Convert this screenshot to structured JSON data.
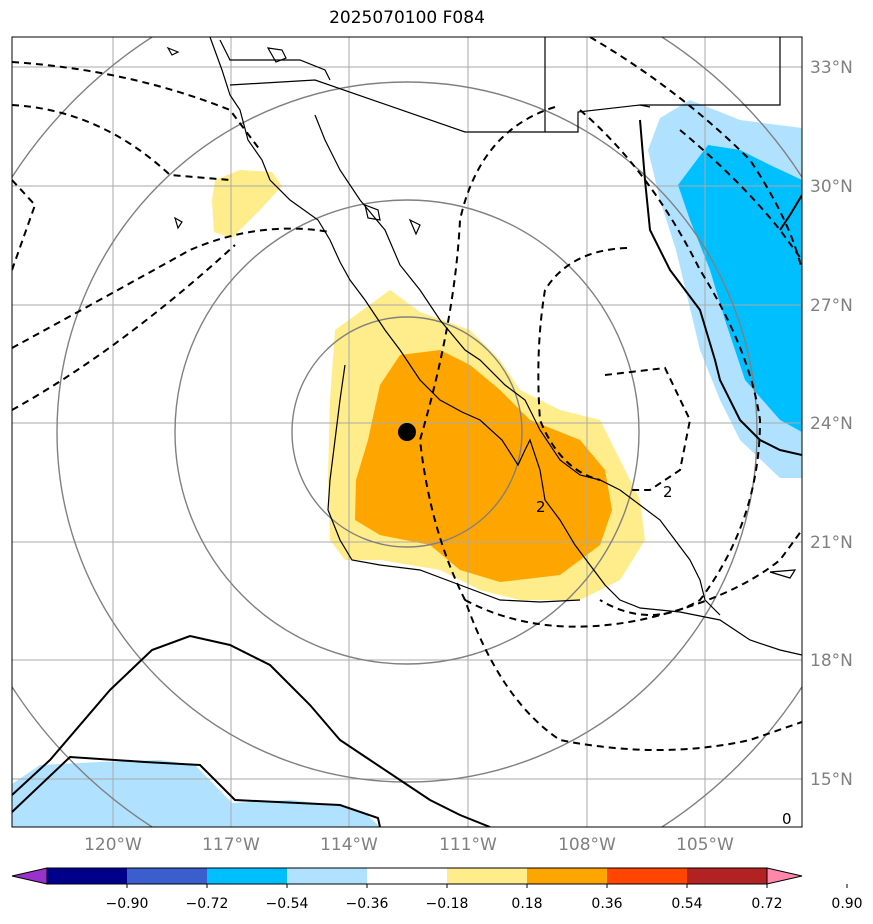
{
  "title": "2025070100 F084",
  "map": {
    "lat_labels": [
      "33°N",
      "30°N",
      "27°N",
      "24°N",
      "21°N",
      "18°N",
      "15°N"
    ],
    "lon_labels": [
      "120°W",
      "117°W",
      "114°W",
      "111°W",
      "108°W",
      "105°W"
    ],
    "contour_labels": [
      "2",
      "2",
      "0"
    ],
    "marker": "storm-center-dot"
  },
  "colorbar": {
    "colors": [
      "#9932cc",
      "#00008b",
      "#3a5fcd",
      "#00bfff",
      "#b0e2ff",
      "#ffffff",
      "#ffec8b",
      "#ffa500",
      "#ff4500",
      "#b22222",
      "#ff88aa"
    ],
    "ticks": [
      "−0.90",
      "−0.72",
      "−0.54",
      "−0.36",
      "−0.18",
      "0.18",
      "0.36",
      "0.54",
      "0.72",
      "0.90"
    ]
  }
}
